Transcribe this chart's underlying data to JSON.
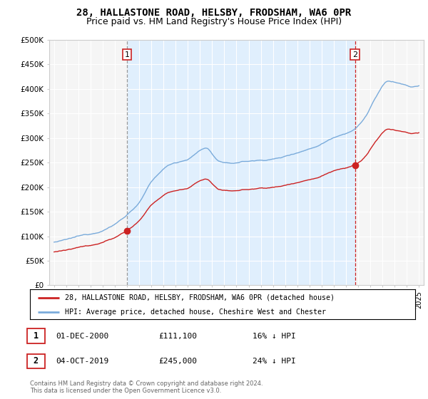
{
  "title1": "28, HALLASTONE ROAD, HELSBY, FRODSHAM, WA6 0PR",
  "title2": "Price paid vs. HM Land Registry's House Price Index (HPI)",
  "ylim": [
    0,
    500000
  ],
  "yticks": [
    0,
    50000,
    100000,
    150000,
    200000,
    250000,
    300000,
    350000,
    400000,
    450000,
    500000
  ],
  "ytick_labels": [
    "£0",
    "£50K",
    "£100K",
    "£150K",
    "£200K",
    "£250K",
    "£300K",
    "£350K",
    "£400K",
    "£450K",
    "£500K"
  ],
  "background_color": "#ffffff",
  "plot_bg_color": "#f5f5f5",
  "grid_color": "#ffffff",
  "hpi_color": "#7aabdb",
  "price_color": "#cc2222",
  "vline1_color": "#aaaaaa",
  "vline2_color": "#cc2222",
  "shade_color": "#ddeeff",
  "marker1_year": 2001.0,
  "marker1_price": 111100,
  "marker2_year": 2019.75,
  "marker2_price": 245000,
  "xlim_left": 1994.6,
  "xlim_right": 2025.4,
  "legend_entry1": "28, HALLASTONE ROAD, HELSBY, FRODSHAM, WA6 0PR (detached house)",
  "legend_entry2": "HPI: Average price, detached house, Cheshire West and Chester",
  "table_row1_num": "1",
  "table_row1_date": "01-DEC-2000",
  "table_row1_price": "£111,100",
  "table_row1_hpi": "16% ↓ HPI",
  "table_row2_num": "2",
  "table_row2_date": "04-OCT-2019",
  "table_row2_price": "£245,000",
  "table_row2_hpi": "24% ↓ HPI",
  "footer": "Contains HM Land Registry data © Crown copyright and database right 2024.\nThis data is licensed under the Open Government Licence v3.0."
}
